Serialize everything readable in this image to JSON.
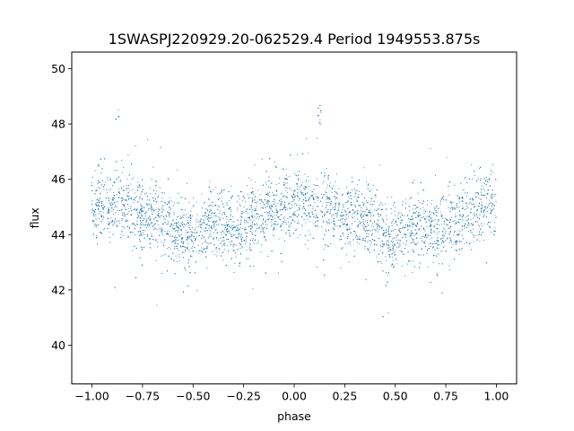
{
  "chart_data": {
    "type": "scatter",
    "title": "1SWASPJ220929.20-062529.4 Period 1949553.875s",
    "xlabel": "phase",
    "ylabel": "flux",
    "xlim": [
      -1.1,
      1.1
    ],
    "ylim": [
      38.6,
      50.6
    ],
    "xticks": [
      -1.0,
      -0.75,
      -0.5,
      -0.25,
      0.0,
      0.25,
      0.5,
      0.75,
      1.0
    ],
    "xtick_labels": [
      "−1.00",
      "−0.75",
      "−0.50",
      "−0.25",
      "0.00",
      "0.25",
      "0.50",
      "0.75",
      "1.00"
    ],
    "yticks": [
      40,
      42,
      44,
      46,
      48,
      50
    ],
    "ytick_labels": [
      "40",
      "42",
      "44",
      "46",
      "48",
      "50"
    ],
    "grid": false,
    "legend": "none",
    "marker_color": "#1f77b4",
    "series": [
      {
        "x": [
          -1.0,
          -0.95,
          -0.9,
          -0.875,
          -0.85,
          -0.8,
          -0.75,
          -0.7,
          -0.65,
          -0.6,
          -0.55,
          -0.5,
          -0.45,
          -0.4,
          -0.35,
          -0.3,
          -0.25,
          -0.2,
          -0.15,
          -0.1,
          -0.05,
          0.0,
          0.05,
          0.1,
          0.125,
          0.15,
          0.2,
          0.25,
          0.3,
          0.35,
          0.4,
          0.45,
          0.5,
          0.55,
          0.6,
          0.65,
          0.7,
          0.75,
          0.8,
          0.85,
          0.9,
          0.95,
          1.0
        ],
        "y": [
          45.0,
          45.2,
          45.0,
          48.2,
          45.1,
          44.9,
          44.6,
          44.7,
          44.5,
          44.3,
          44.0,
          43.9,
          44.2,
          44.4,
          44.3,
          44.2,
          44.3,
          44.5,
          44.8,
          45.0,
          45.1,
          45.0,
          45.2,
          45.0,
          48.2,
          45.1,
          44.9,
          44.6,
          44.7,
          44.5,
          44.3,
          44.0,
          43.9,
          44.2,
          44.4,
          44.3,
          44.2,
          44.3,
          44.5,
          44.8,
          45.0,
          45.1,
          45.0
        ]
      }
    ]
  }
}
